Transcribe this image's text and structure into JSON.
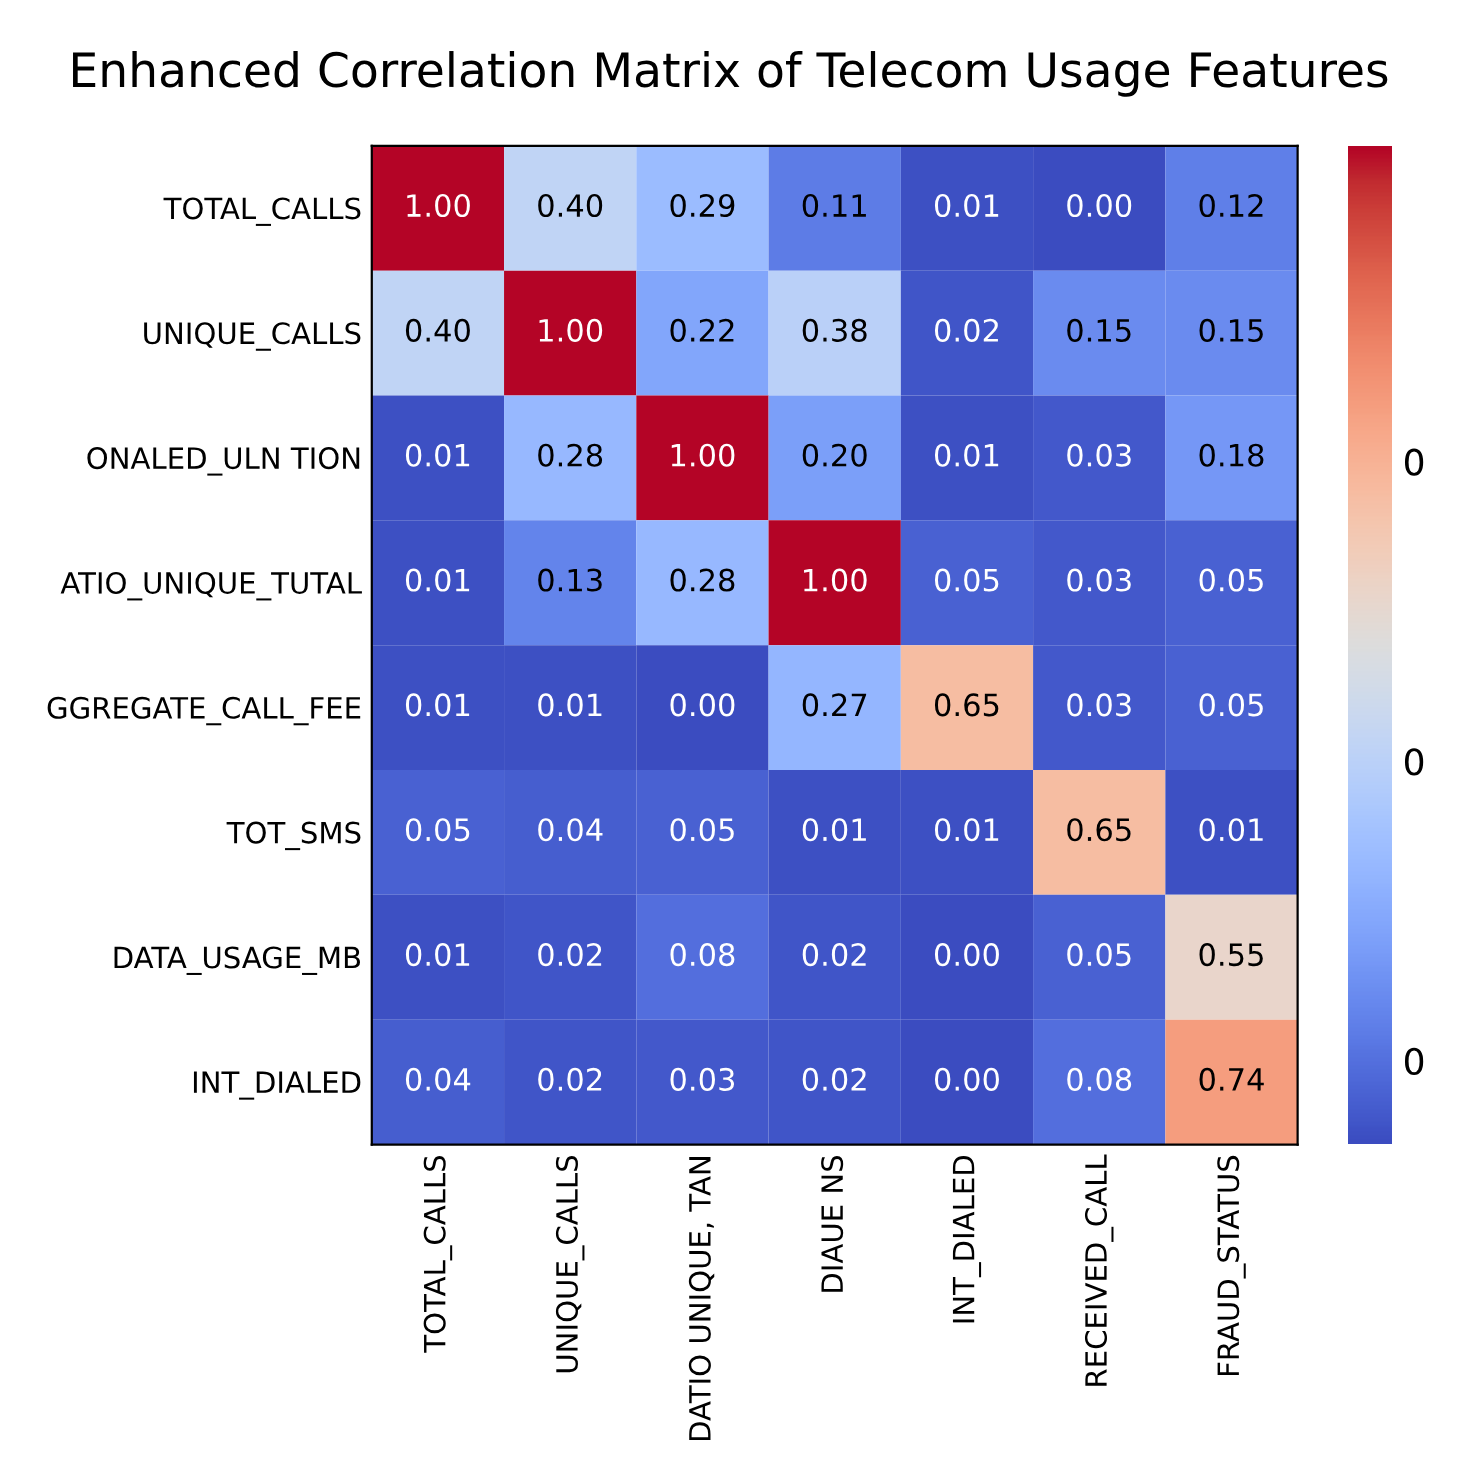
{
  "chart_data": {
    "type": "heatmap",
    "title": "Enhanced Correlation Matrix of Telecom Usage Features",
    "categories": [
      "TOTAL_CALLS",
      "UNIQUE_CALLS",
      "DATIO UNIQUE, TAN",
      "DIAUE NS",
      "INT_DIALED",
      "RECEIVED_CALL",
      "FRAUD_STATUS"
    ],
    "y_categories": [
      "TOTAL_CALLS",
      "UNIQUE_CALLS",
      "ONALED_ULN TION",
      "ATIO_UNIQUE_TUTAL",
      "GGREGATE_CALL_FEE",
      "TOT_SMS",
      "DATA_USAGE_MB",
      "INT_DIALED"
    ],
    "cells": [
      [
        1.0,
        0.4,
        0.29,
        0.11,
        0.01,
        0.0,
        0.12
      ],
      [
        0.4,
        1.0,
        0.22,
        0.38,
        0.02,
        0.15,
        0.15
      ],
      [
        0.01,
        0.28,
        1.0,
        0.2,
        0.01,
        0.03,
        0.18
      ],
      [
        0.01,
        0.13,
        0.28,
        1.0,
        0.05,
        0.03,
        0.05
      ],
      [
        0.01,
        0.01,
        0.0,
        0.27,
        0.65,
        0.03,
        0.05
      ],
      [
        0.05,
        0.04,
        0.05,
        0.01,
        0.01,
        0.65,
        0.01
      ],
      [
        0.01,
        0.02,
        0.08,
        0.02,
        0.0,
        0.05,
        0.55
      ],
      [
        0.04,
        0.02,
        0.03,
        0.02,
        0.0,
        0.08,
        0.74
      ]
    ],
    "cell_labels": [
      [
        "1.00",
        "0.40",
        "0.29",
        "0.11",
        "0.01",
        "0.00",
        "0.12"
      ],
      [
        "0.40",
        "1.00",
        "0.22",
        "0.38",
        "0.02",
        "0.15",
        "0.15"
      ],
      [
        "0.01",
        "0.28",
        "1.00",
        "0.20",
        "0.01",
        "0.03",
        "0.18"
      ],
      [
        "0.01",
        "0.13",
        "0.28",
        "1.00",
        "0.05",
        "0.03",
        "0.05"
      ],
      [
        "0.01",
        "0.01",
        "0.00",
        "0.27",
        "0.65",
        "0.03",
        "0.05"
      ],
      [
        "0.05",
        "0.04",
        "0.05",
        "0.01",
        "0.01",
        "0.65",
        "0.01"
      ],
      [
        "0.01",
        "0.02",
        "0.08",
        "0.02",
        "0.00",
        "0.05",
        "0.55"
      ],
      [
        "0.04",
        "0.02",
        "0.03",
        "0.02",
        "0.00",
        "0.08",
        "0.74"
      ]
    ],
    "annotations": [
      "0",
      "0",
      "0"
    ]
  }
}
